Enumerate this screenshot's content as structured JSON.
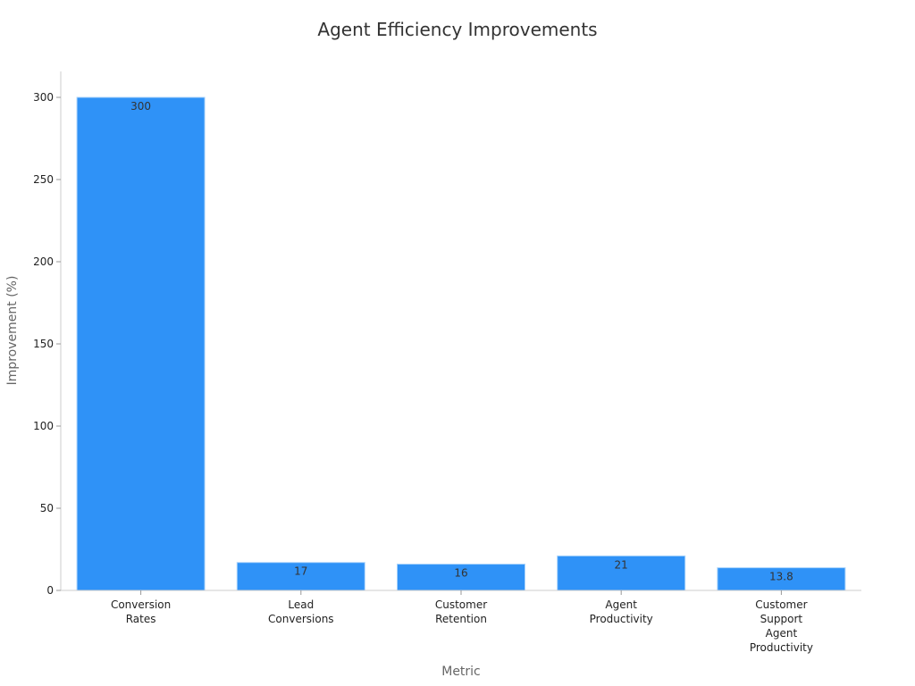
{
  "chart_data": {
    "type": "bar",
    "title": "Agent Efficiency Improvements",
    "xlabel": "Metric",
    "ylabel": "Improvement (%)",
    "categories": [
      [
        "Conversion",
        "Rates"
      ],
      [
        "Lead",
        "Conversions"
      ],
      [
        "Customer",
        "Retention"
      ],
      [
        "Agent",
        "Productivity"
      ],
      [
        "Customer",
        "Support",
        "Agent",
        "Productivity"
      ]
    ],
    "values": [
      300,
      17,
      16,
      21,
      13.8
    ],
    "value_labels": [
      "300",
      "17",
      "16",
      "21",
      "13.8"
    ],
    "ylim": [
      0,
      315
    ],
    "yticks": [
      0,
      50,
      100,
      150,
      200,
      250,
      300
    ],
    "grid": false,
    "legend": "none",
    "colors": {
      "bar": "#2f92f7",
      "bar_edge": "#a9d3fb"
    }
  }
}
